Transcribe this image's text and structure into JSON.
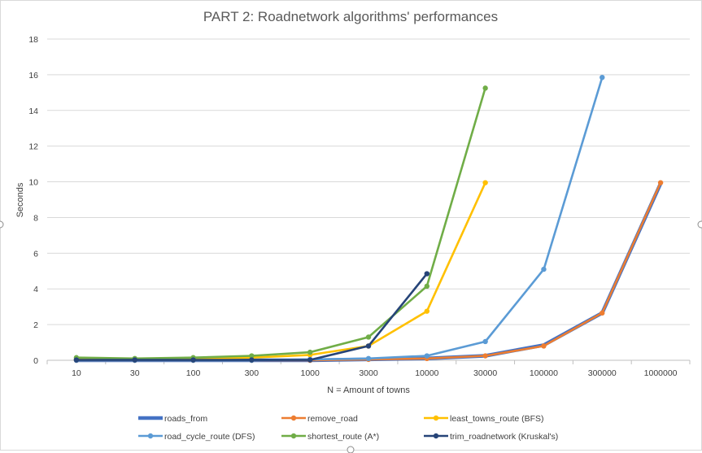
{
  "chart_data": {
    "type": "line",
    "title": "PART 2: Roadnetwork algorithms' performances",
    "xlabel": "N = Amount of towns",
    "ylabel": "Seconds",
    "categories": [
      "10",
      "30",
      "100",
      "300",
      "1000",
      "3000",
      "10000",
      "30000",
      "100000",
      "300000",
      "1000000"
    ],
    "ylim": [
      0,
      18
    ],
    "yticks": [
      0,
      2,
      4,
      6,
      8,
      10,
      12,
      14,
      16,
      18
    ],
    "grid": "horizontal",
    "legend_position": "bottom",
    "series": [
      {
        "name": "roads_from",
        "color": "#4472C4",
        "markers": false,
        "values": [
          0,
          0,
          0,
          0,
          0,
          0.05,
          0.1,
          0.25,
          0.85,
          2.65,
          9.9
        ]
      },
      {
        "name": "remove_road",
        "color": "#ED7D31",
        "markers": true,
        "values": [
          0,
          0,
          0,
          0,
          0,
          0.05,
          0.1,
          0.25,
          0.8,
          2.65,
          9.95
        ]
      },
      {
        "name": "least_towns_route (BFS)",
        "color": "#FFC000",
        "markers": true,
        "values": [
          0.05,
          0.05,
          0.1,
          0.15,
          0.3,
          0.8,
          2.75,
          9.95,
          null,
          null,
          null
        ]
      },
      {
        "name": "road_cycle_route (DFS)",
        "color": "#5B9BD5",
        "markers": true,
        "values": [
          0,
          0,
          0,
          0,
          0.05,
          0.1,
          0.25,
          1.05,
          5.1,
          15.85,
          null
        ]
      },
      {
        "name": "shortest_route (A*)",
        "color": "#70AD47",
        "markers": true,
        "values": [
          0.15,
          0.1,
          0.15,
          0.25,
          0.45,
          1.3,
          4.15,
          15.25,
          null,
          null,
          null
        ]
      },
      {
        "name": "trim_roadnetwork (Kruskal's)",
        "color": "#264478",
        "markers": true,
        "values": [
          0.02,
          0.02,
          0.02,
          0.02,
          0.02,
          0.8,
          4.85,
          null,
          null,
          null,
          null
        ]
      }
    ]
  }
}
